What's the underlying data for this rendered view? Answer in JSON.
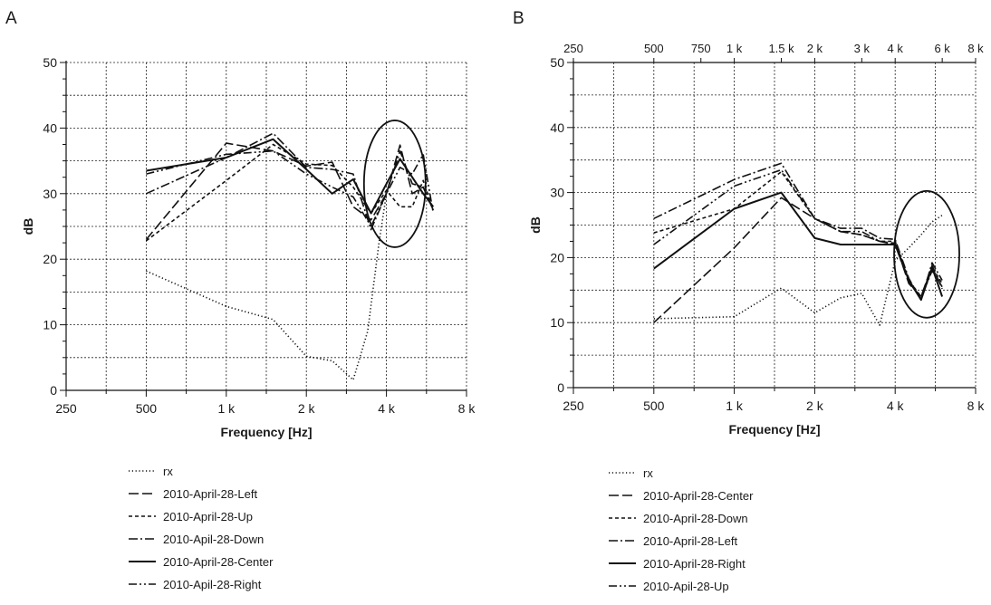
{
  "chart_data": [
    {
      "type": "line",
      "panel_label": "A",
      "xlabel": "Frequency [Hz]",
      "ylabel": "dB",
      "x_scale": "log2",
      "xlim": [
        250,
        8000
      ],
      "ylim": [
        0,
        50
      ],
      "grid": true,
      "legend_position": "bottom-left",
      "x_tick_values": [
        250,
        500,
        1000,
        2000,
        4000,
        8000
      ],
      "x_tick_labels": [
        "250",
        "500",
        "1 k",
        "2 k",
        "4 k",
        "8 k"
      ],
      "y_tick_values": [
        0,
        10,
        20,
        30,
        40,
        50
      ],
      "y_tick_labels": [
        "0",
        "10",
        "20",
        "30",
        "40",
        "50"
      ],
      "annotation": {
        "shape": "ellipse",
        "x_center": 4300,
        "y_center": 31.5
      },
      "series": [
        {
          "name": "rx",
          "dash": "dotted",
          "x": [
            500,
            1000,
            1500,
            2000,
            2500,
            3000,
            3400,
            3750,
            4000
          ],
          "y": [
            18.2,
            12.8,
            10.8,
            5.2,
            4.5,
            1.6,
            9,
            22.5,
            30
          ]
        },
        {
          "name": "2010-April-28-Left",
          "dash": "dashed",
          "x": [
            500,
            1000,
            1500,
            2000,
            2500,
            3000,
            3500,
            4000,
            4500,
            5000,
            5500,
            6000
          ],
          "y": [
            23,
            37.7,
            36.5,
            34.2,
            34.8,
            28,
            26,
            30,
            37.4,
            30,
            31,
            27.5
          ]
        },
        {
          "name": "2010-April-28-Up",
          "dash": "short-dashed",
          "x": [
            500,
            1000,
            1500,
            2000,
            2500,
            3000,
            3500,
            4000,
            4500,
            5000,
            5500,
            6000
          ],
          "y": [
            22.8,
            32,
            37.5,
            34.5,
            34.3,
            31,
            27,
            30.5,
            28,
            28,
            32,
            27.5
          ]
        },
        {
          "name": "2010-Apil-28-Down",
          "dash": "dash-dot",
          "x": [
            500,
            1000,
            1500,
            2000,
            2500,
            3000,
            3500,
            4000,
            4500,
            5000,
            5500,
            6000
          ],
          "y": [
            30,
            35.5,
            39.2,
            34,
            33.7,
            33,
            24.5,
            30,
            36.5,
            31.5,
            31,
            27.5
          ]
        },
        {
          "name": "2010-April-28-Center",
          "dash": "solid",
          "x": [
            500,
            1000,
            1500,
            2000,
            2500,
            3000,
            3500,
            4000,
            4500,
            5000,
            5500,
            6000
          ],
          "y": [
            33.5,
            35.5,
            38.3,
            33.7,
            30,
            32.2,
            27,
            31.5,
            35.3,
            32.5,
            30,
            28
          ]
        },
        {
          "name": "2010-Apil-28-Right",
          "dash": "dash-dot-dot",
          "x": [
            500,
            1000,
            1500,
            2000,
            2500,
            3000,
            3500,
            4000,
            4500,
            5000,
            5500,
            6000
          ],
          "y": [
            33,
            36,
            36.5,
            33,
            31,
            29.5,
            25,
            30,
            34,
            33,
            36,
            27
          ]
        }
      ],
      "legend": [
        {
          "name": "rx",
          "dash": "dotted"
        },
        {
          "name": "2010-April-28-Left",
          "dash": "dashed"
        },
        {
          "name": "2010-April-28-Up",
          "dash": "short-dashed"
        },
        {
          "name": "2010-Apil-28-Down",
          "dash": "dash-dot"
        },
        {
          "name": "2010-April-28-Center",
          "dash": "solid"
        },
        {
          "name": "2010-Apil-28-Right",
          "dash": "dash-dot-dot"
        }
      ]
    },
    {
      "type": "line",
      "panel_label": "B",
      "xlabel": "Frequency [Hz]",
      "ylabel": "dB",
      "x_scale": "log2",
      "xlim": [
        250,
        8000
      ],
      "ylim": [
        0,
        50
      ],
      "grid": true,
      "legend_position": "bottom-left",
      "x_tick_values": [
        250,
        500,
        1000,
        2000,
        4000,
        8000
      ],
      "x_tick_labels": [
        "250",
        "500",
        "1 k",
        "2 k",
        "4 k",
        "8 k"
      ],
      "top_x_tick_values": [
        250,
        500,
        750,
        1000,
        1500,
        2000,
        3000,
        4000,
        6000,
        8000
      ],
      "top_x_tick_labels": [
        "250",
        "500",
        "750",
        "1 k",
        "1.5 k",
        "2 k",
        "3 k",
        "4 k",
        "6 k",
        "8 k"
      ],
      "y_tick_values": [
        0,
        10,
        20,
        30,
        40,
        50
      ],
      "y_tick_labels": [
        "0",
        "10",
        "20",
        "30",
        "40",
        "50"
      ],
      "annotation": {
        "shape": "ellipse",
        "x_center": 5250,
        "y_center": 20.5
      },
      "series": [
        {
          "name": "rx",
          "dash": "dotted",
          "x": [
            500,
            1000,
            1500,
            2000,
            2500,
            3000,
            3500,
            4000,
            4500,
            5000,
            5500,
            6000
          ],
          "y": [
            10.6,
            10.9,
            15.3,
            11.5,
            13.8,
            14.5,
            9.6,
            19.5,
            21.5,
            23.5,
            25.5,
            26.5
          ]
        },
        {
          "name": "2010-April-28-Center",
          "dash": "dashed",
          "x": [
            500,
            1000,
            1500,
            2000,
            2500,
            3000,
            3500,
            4000,
            4500,
            5000,
            5500,
            6000
          ],
          "y": [
            10,
            21.5,
            29.2,
            26,
            24,
            23.5,
            22.5,
            22.2,
            16,
            14,
            18.8,
            15.2
          ]
        },
        {
          "name": "2010-April-28-Down",
          "dash": "short-dashed",
          "x": [
            500,
            1000,
            1500,
            2000,
            2500,
            3000,
            3500,
            4000,
            4500,
            5000,
            5500,
            6000
          ],
          "y": [
            23.8,
            27.5,
            33.2,
            26,
            24,
            23.5,
            22.5,
            22.5,
            16.5,
            14,
            18.5,
            16
          ]
        },
        {
          "name": "2010-April-28-Left",
          "dash": "dash-dot",
          "x": [
            500,
            1000,
            1500,
            2000,
            2500,
            3000,
            3500,
            4000,
            4500,
            5000,
            5500,
            6000
          ],
          "y": [
            26,
            32,
            34.5,
            26,
            24.5,
            24.5,
            23,
            22.8,
            16.8,
            13.5,
            19.2,
            16.5
          ]
        },
        {
          "name": "2010-April-28-Right",
          "dash": "solid",
          "x": [
            500,
            1000,
            1500,
            2000,
            2500,
            3000,
            3500,
            4000,
            4500,
            5000,
            5500,
            6000
          ],
          "y": [
            18.3,
            27.5,
            30,
            23,
            22,
            22,
            22,
            22,
            16.5,
            13.5,
            18.5,
            14
          ]
        },
        {
          "name": "2010-Apil-28-Up",
          "dash": "dash-dot-dot",
          "x": [
            500,
            1000,
            1500,
            2000,
            2500,
            3000,
            3500,
            4000,
            4500,
            5000,
            5500,
            6000
          ],
          "y": [
            22,
            31,
            33.5,
            26,
            24,
            24,
            22.5,
            22,
            16.2,
            13.8,
            18,
            15.5
          ]
        }
      ],
      "legend": [
        {
          "name": "rx",
          "dash": "dotted"
        },
        {
          "name": "2010-April-28-Center",
          "dash": "dashed"
        },
        {
          "name": "2010-April-28-Down",
          "dash": "short-dashed"
        },
        {
          "name": "2010-April-28-Left",
          "dash": "dash-dot"
        },
        {
          "name": "2010-April-28-Right",
          "dash": "solid"
        },
        {
          "name": "2010-Apil-28-Up",
          "dash": "dash-dot-dot"
        }
      ]
    }
  ]
}
